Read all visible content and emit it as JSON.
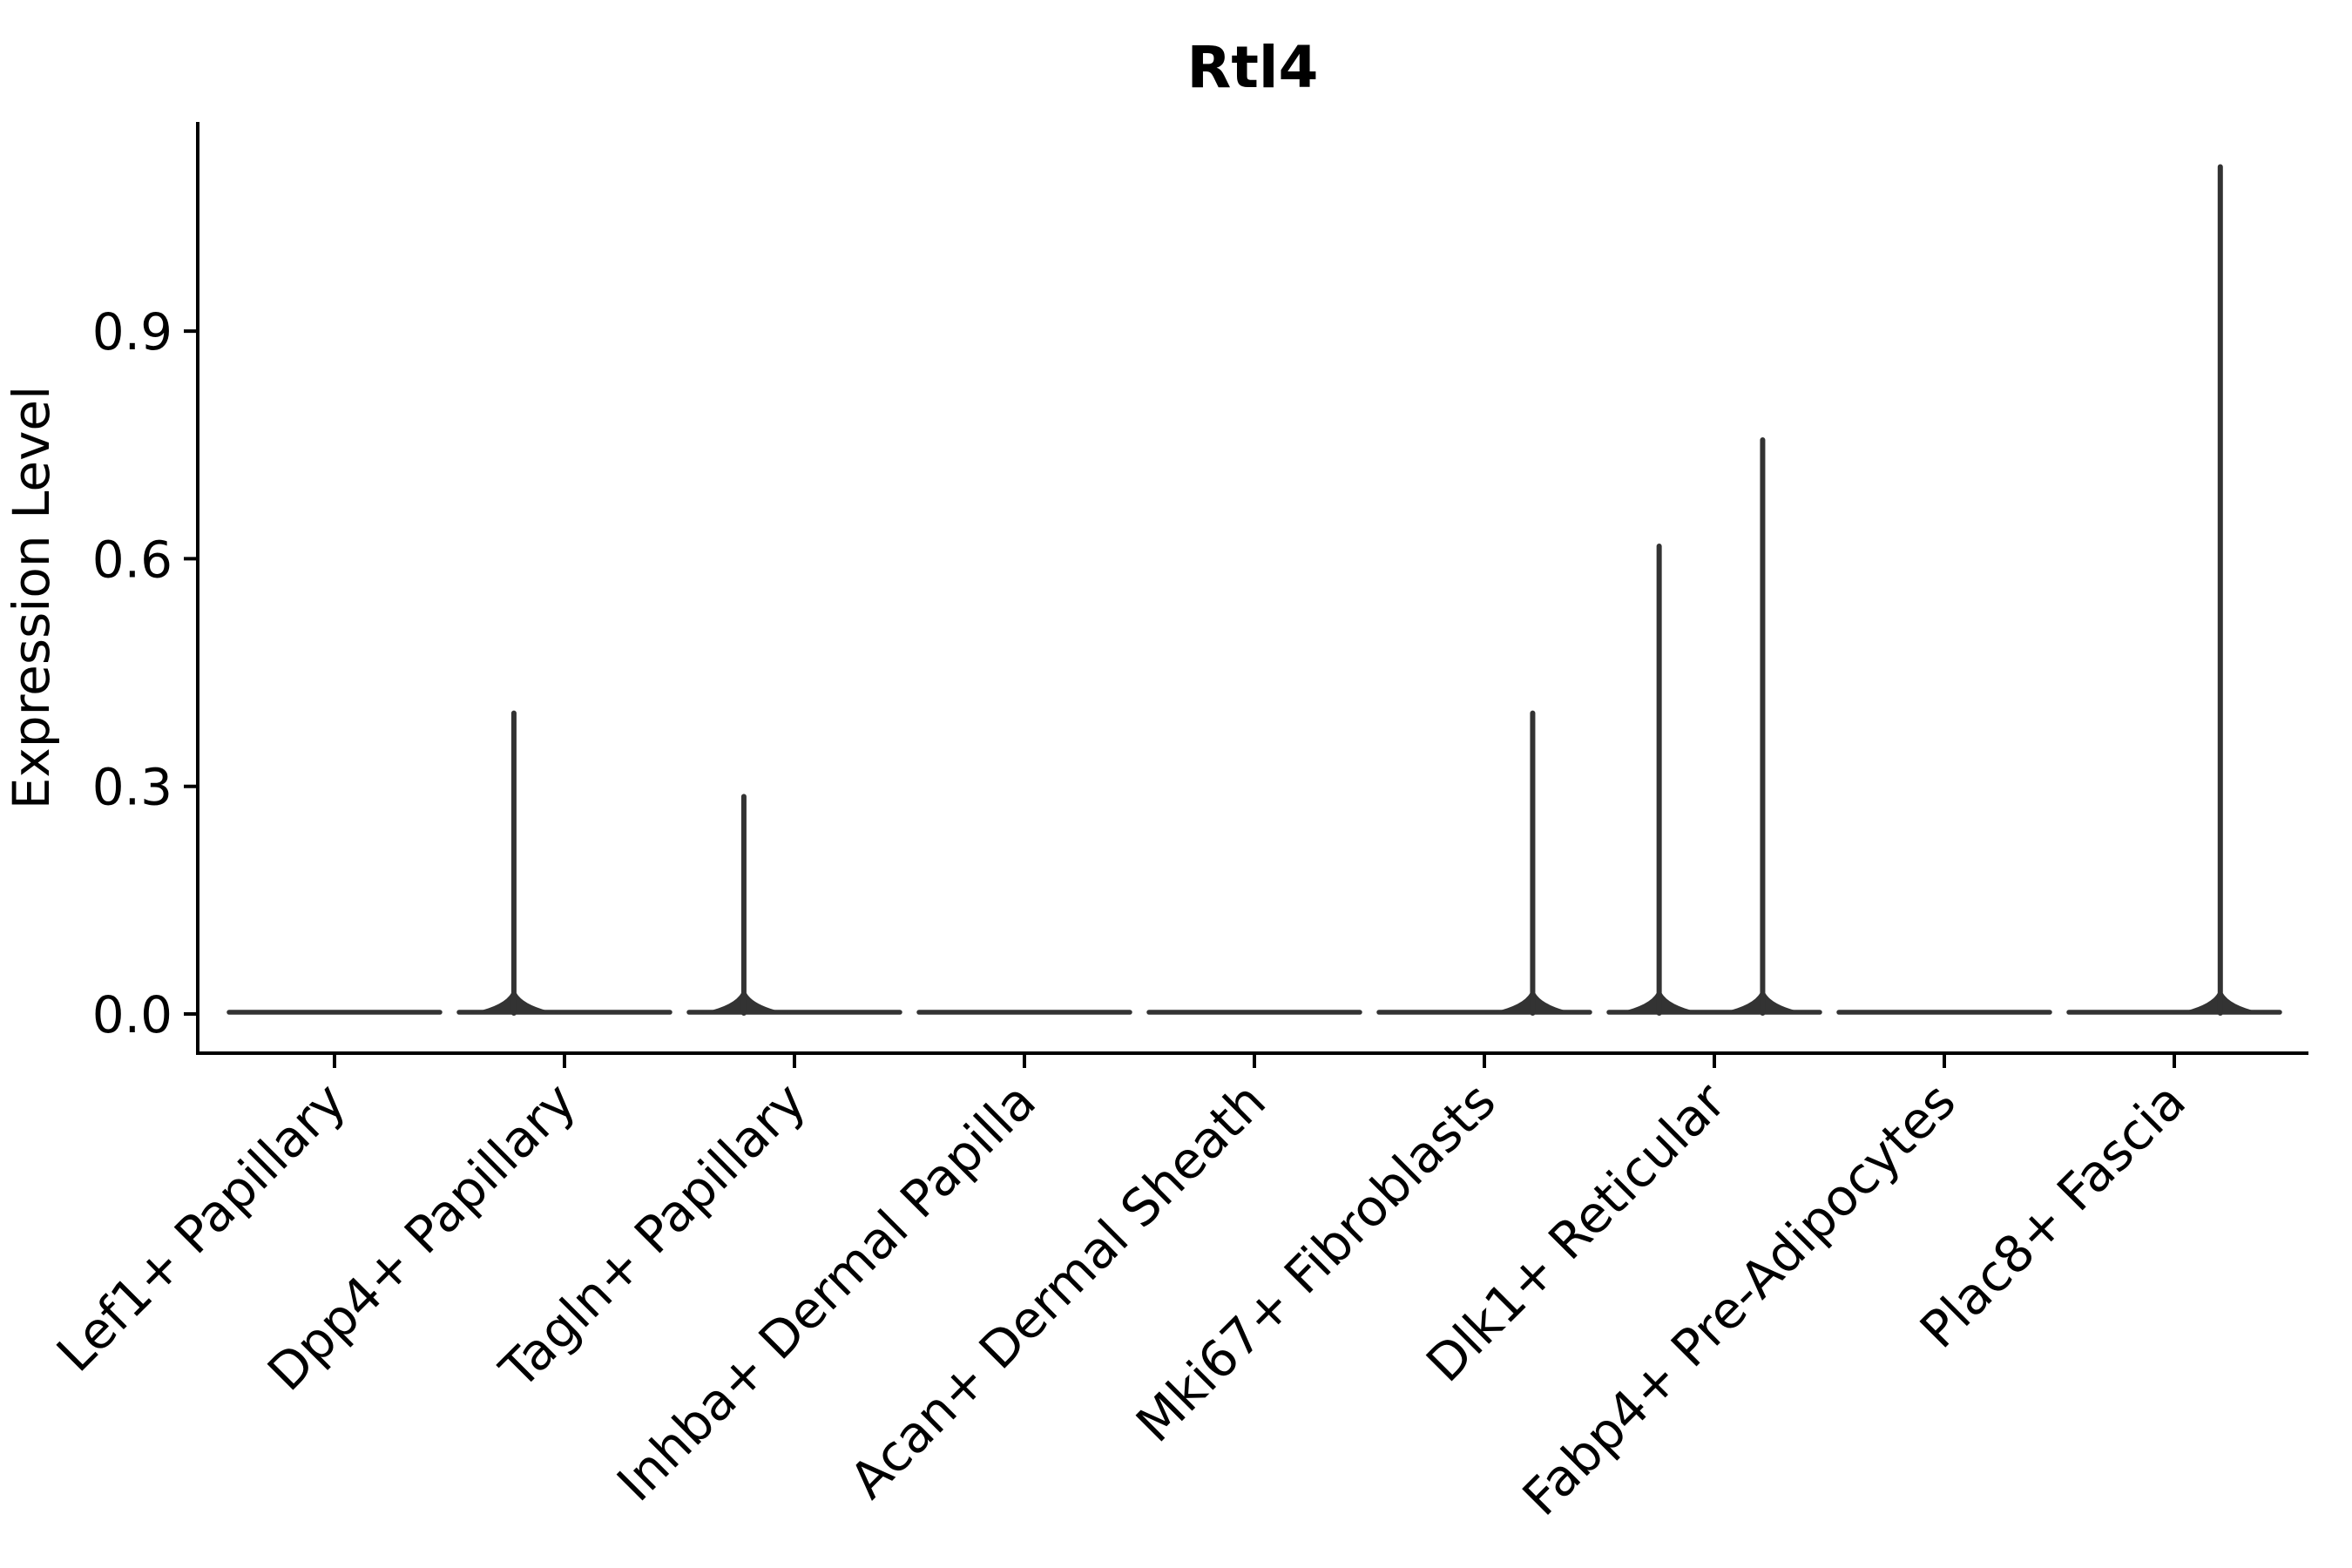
{
  "chart_data": {
    "type": "violin",
    "title": "Rtl4",
    "xlabel": "",
    "ylabel": "Expression Level",
    "grid": false,
    "legend": false,
    "background_color": "#ffffff",
    "ylim": [
      0,
      1.17
    ],
    "ytick_values": [
      0.9,
      0.6,
      0.3,
      0.0
    ],
    "ytick_labels": [
      "0.9",
      "0.6",
      "0.3",
      "0.0"
    ],
    "categories": [
      "Lef1+ Papillary",
      "Dpp4+ Papillary",
      "Tagln+ Papillary",
      "Inhba+ Dermal Papilla",
      "Acan+ Dermal Sheath",
      "Mki67+ Fibroblasts",
      "Dlk1+ Reticular",
      "Fabp4+ Pre-Adipocytes",
      "Plac8+ Fascia"
    ],
    "x_label_rotation_deg": 45,
    "series": [
      {
        "name": "Lef1+ Papillary",
        "zero_density_bar": 0.0,
        "spikes": []
      },
      {
        "name": "Dpp4+ Papillary",
        "zero_density_bar": 0.0,
        "spikes": [
          {
            "value": 0.4,
            "offset": -0.22
          }
        ]
      },
      {
        "name": "Tagln+ Papillary",
        "zero_density_bar": 0.0,
        "spikes": [
          {
            "value": 0.29,
            "offset": -0.22
          }
        ]
      },
      {
        "name": "Inhba+ Dermal Papilla",
        "zero_density_bar": 0.0,
        "spikes": []
      },
      {
        "name": "Acan+ Dermal Sheath",
        "zero_density_bar": 0.0,
        "spikes": []
      },
      {
        "name": "Mki67+ Fibroblasts",
        "zero_density_bar": 0.0,
        "spikes": [
          {
            "value": 0.4,
            "offset": 0.21
          }
        ]
      },
      {
        "name": "Dlk1+ Reticular",
        "zero_density_bar": 0.0,
        "spikes": [
          {
            "value": 0.62,
            "offset": -0.24
          },
          {
            "value": 0.76,
            "offset": 0.21
          }
        ]
      },
      {
        "name": "Fabp4+ Pre-Adipocytes",
        "zero_density_bar": 0.0,
        "spikes": []
      },
      {
        "name": "Plac8+ Fascia",
        "zero_density_bar": 0.0,
        "spikes": [
          {
            "value": 1.12,
            "offset": 0.2
          }
        ]
      }
    ],
    "colors": {
      "violin": "#333333",
      "axis": "#000000",
      "text": "#000000",
      "background": "#ffffff"
    }
  }
}
